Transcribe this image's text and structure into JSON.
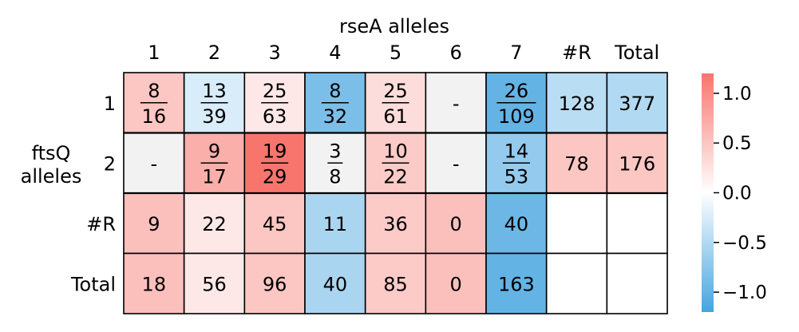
{
  "chart_data": {
    "type": "heatmap",
    "title": "",
    "xlabel": "rseA alleles",
    "ylabel": "ftsQ\nalleles",
    "columns": [
      "1",
      "2",
      "3",
      "4",
      "5",
      "6",
      "7",
      "#R",
      "Total"
    ],
    "rows": [
      "1",
      "2",
      "#R",
      "Total"
    ],
    "cells": [
      [
        {
          "label": "",
          "num": "8",
          "den": "16",
          "value": 0.5
        },
        {
          "label": "",
          "num": "13",
          "den": "39",
          "value": -0.25
        },
        {
          "label": "",
          "num": "25",
          "den": "63",
          "value": 0.2
        },
        {
          "label": "",
          "num": "8",
          "den": "32",
          "value": -0.85
        },
        {
          "label": "",
          "num": "25",
          "den": "61",
          "value": 0.3
        },
        {
          "label": "-",
          "num": "",
          "den": "",
          "value": null
        },
        {
          "label": "",
          "num": "26",
          "den": "109",
          "value": -1.0
        },
        {
          "label": "128",
          "num": "",
          "den": "",
          "value": -0.45
        },
        {
          "label": "377",
          "num": "",
          "den": "",
          "value": -0.5
        }
      ],
      [
        {
          "label": "-",
          "num": "",
          "den": "",
          "value": null
        },
        {
          "label": "",
          "num": "9",
          "den": "17",
          "value": 0.7
        },
        {
          "label": "",
          "num": "19",
          "den": "29",
          "value": 1.2
        },
        {
          "label": "",
          "num": "3",
          "den": "8",
          "value": null
        },
        {
          "label": "",
          "num": "10",
          "den": "22",
          "value": 0.45
        },
        {
          "label": "-",
          "num": "",
          "den": "",
          "value": null
        },
        {
          "label": "",
          "num": "14",
          "den": "53",
          "value": -0.7
        },
        {
          "label": "78",
          "num": "",
          "den": "",
          "value": 0.5
        },
        {
          "label": "176",
          "num": "",
          "den": "",
          "value": 0.5
        }
      ],
      [
        {
          "label": "9",
          "num": "",
          "den": "",
          "value": 0.55
        },
        {
          "label": "22",
          "num": "",
          "den": "",
          "value": 0.2
        },
        {
          "label": "45",
          "num": "",
          "den": "",
          "value": 0.5
        },
        {
          "label": "11",
          "num": "",
          "den": "",
          "value": -0.55
        },
        {
          "label": "36",
          "num": "",
          "den": "",
          "value": 0.45
        },
        {
          "label": "0",
          "num": "",
          "den": "",
          "value": 0.55
        },
        {
          "label": "40",
          "num": "",
          "den": "",
          "value": -0.95
        },
        {
          "label": "",
          "num": "",
          "den": "",
          "value": "blank"
        },
        {
          "label": "",
          "num": "",
          "den": "",
          "value": "blank"
        }
      ],
      [
        {
          "label": "18",
          "num": "",
          "den": "",
          "value": 0.55
        },
        {
          "label": "56",
          "num": "",
          "den": "",
          "value": 0.2
        },
        {
          "label": "96",
          "num": "",
          "den": "",
          "value": 0.5
        },
        {
          "label": "40",
          "num": "",
          "den": "",
          "value": -0.55
        },
        {
          "label": "85",
          "num": "",
          "den": "",
          "value": 0.45
        },
        {
          "label": "0",
          "num": "",
          "den": "",
          "value": 0.55
        },
        {
          "label": "163",
          "num": "",
          "den": "",
          "value": -1.0
        },
        {
          "label": "",
          "num": "",
          "den": "",
          "value": "blank"
        },
        {
          "label": "",
          "num": "",
          "den": "",
          "value": "blank"
        }
      ]
    ],
    "colorbar": {
      "vmin": -1.2,
      "vmax": 1.2,
      "ticks": [
        1.0,
        0.5,
        0.0,
        -0.5,
        -1.0
      ],
      "tick_labels": [
        "1.0",
        "0.5",
        "0.0",
        "−0.5",
        "−1.0"
      ],
      "low_color": "#45a4e0",
      "mid_color": "#ffffff",
      "high_color": "#f8756d",
      "missing_color": "#f2f2f2",
      "blank_color": "#ffffff"
    },
    "legend": "none",
    "grid": false
  }
}
